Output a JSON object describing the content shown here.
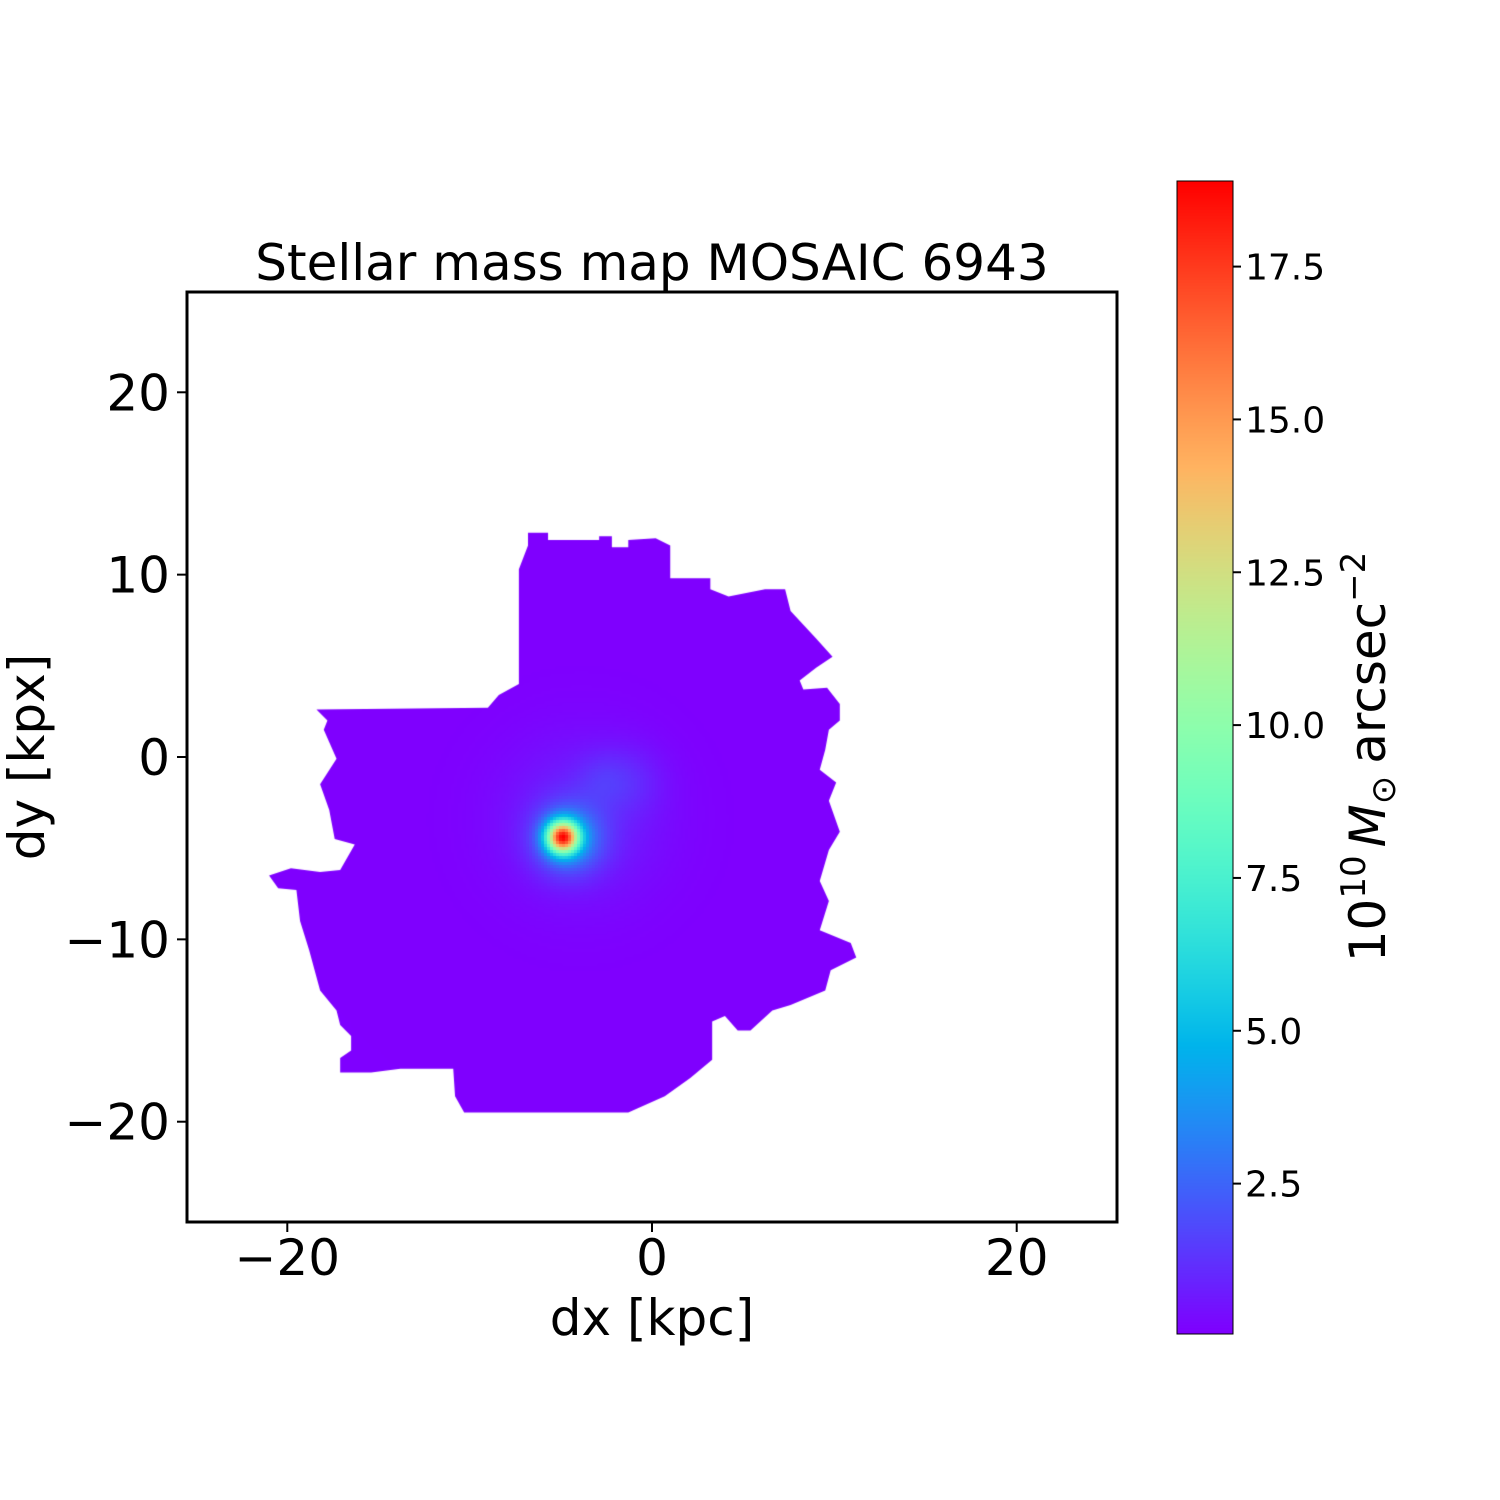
{
  "chart_data": {
    "type": "heatmap",
    "title": "Stellar mass map MOSAIC 6943",
    "xlabel": "dx [kpc]",
    "ylabel": "dy [kpx]",
    "xlim": [
      -25.5,
      25.5
    ],
    "ylim": [
      -25.5,
      25.5
    ],
    "xticks": [
      {
        "value": -20,
        "label": "−20"
      },
      {
        "value": 0,
        "label": "0"
      },
      {
        "value": 20,
        "label": "20"
      }
    ],
    "yticks": [
      {
        "value": 20,
        "label": "20"
      },
      {
        "value": 10,
        "label": "10"
      },
      {
        "value": 0,
        "label": "0"
      },
      {
        "value": -10,
        "label": "−10"
      },
      {
        "value": -20,
        "label": "−20"
      }
    ],
    "colormap": "rainbow",
    "grid": false,
    "peak": {
      "x": -4.9,
      "y": -4.4,
      "value": 18.9
    },
    "background_value": 0.04,
    "galaxy_outline": [
      [
        -6.8,
        12.3
      ],
      [
        -5.7,
        12.3
      ],
      [
        -5.7,
        11.9
      ],
      [
        -2.9,
        11.9
      ],
      [
        -2.9,
        12.1
      ],
      [
        -2.2,
        12.1
      ],
      [
        -2.2,
        11.5
      ],
      [
        -1.3,
        11.5
      ],
      [
        -1.3,
        11.9
      ],
      [
        0.2,
        12.0
      ],
      [
        1.0,
        11.6
      ],
      [
        1.0,
        9.8
      ],
      [
        3.2,
        9.8
      ],
      [
        3.2,
        9.2
      ],
      [
        4.2,
        8.8
      ],
      [
        6.2,
        9.2
      ],
      [
        7.3,
        9.2
      ],
      [
        7.6,
        8.0
      ],
      [
        9.0,
        6.5
      ],
      [
        9.9,
        5.5
      ],
      [
        9.0,
        4.9
      ],
      [
        8.1,
        4.2
      ],
      [
        8.3,
        3.7
      ],
      [
        9.6,
        3.8
      ],
      [
        10.3,
        2.9
      ],
      [
        10.3,
        2.0
      ],
      [
        9.7,
        1.5
      ],
      [
        9.5,
        0.4
      ],
      [
        9.2,
        -0.7
      ],
      [
        10.1,
        -1.4
      ],
      [
        9.7,
        -2.4
      ],
      [
        10.3,
        -4.1
      ],
      [
        9.7,
        -5.1
      ],
      [
        9.2,
        -6.8
      ],
      [
        9.7,
        -7.9
      ],
      [
        9.2,
        -9.5
      ],
      [
        10.9,
        -10.2
      ],
      [
        11.2,
        -11.0
      ],
      [
        9.8,
        -11.7
      ],
      [
        9.5,
        -12.8
      ],
      [
        7.6,
        -13.6
      ],
      [
        6.6,
        -13.9
      ],
      [
        5.4,
        -15.0
      ],
      [
        4.7,
        -15.0
      ],
      [
        4.0,
        -14.2
      ],
      [
        3.3,
        -14.5
      ],
      [
        3.3,
        -16.6
      ],
      [
        2.1,
        -17.6
      ],
      [
        0.7,
        -18.6
      ],
      [
        -1.3,
        -19.5
      ],
      [
        -10.3,
        -19.5
      ],
      [
        -10.8,
        -18.6
      ],
      [
        -10.9,
        -17.1
      ],
      [
        -13.8,
        -17.1
      ],
      [
        -15.4,
        -17.3
      ],
      [
        -17.1,
        -17.3
      ],
      [
        -17.1,
        -16.5
      ],
      [
        -16.5,
        -16.1
      ],
      [
        -16.5,
        -15.3
      ],
      [
        -17.1,
        -14.7
      ],
      [
        -17.3,
        -13.9
      ],
      [
        -18.2,
        -12.8
      ],
      [
        -18.8,
        -10.6
      ],
      [
        -19.3,
        -9.0
      ],
      [
        -19.5,
        -7.3
      ],
      [
        -20.5,
        -7.2
      ],
      [
        -21.0,
        -6.5
      ],
      [
        -19.8,
        -6.1
      ],
      [
        -18.2,
        -6.3
      ],
      [
        -17.1,
        -6.2
      ],
      [
        -16.3,
        -4.8
      ],
      [
        -17.4,
        -4.5
      ],
      [
        -17.7,
        -2.9
      ],
      [
        -18.2,
        -1.5
      ],
      [
        -17.3,
        -0.1
      ],
      [
        -18.0,
        1.5
      ],
      [
        -17.8,
        2.0
      ],
      [
        -18.4,
        2.6
      ],
      [
        -9.0,
        2.7
      ],
      [
        -8.4,
        3.4
      ],
      [
        -7.3,
        4.0
      ],
      [
        -7.3,
        10.3
      ],
      [
        -6.8,
        11.6
      ]
    ],
    "colorbar": {
      "range": [
        0.04,
        18.9
      ],
      "ticks": [
        {
          "value": 2.5,
          "label": "2.5"
        },
        {
          "value": 5.0,
          "label": "5.0"
        },
        {
          "value": 7.5,
          "label": "7.5"
        },
        {
          "value": 10.0,
          "label": "10.0"
        },
        {
          "value": 12.5,
          "label": "12.5"
        },
        {
          "value": 15.0,
          "label": "15.0"
        },
        {
          "value": 17.5,
          "label": "17.5"
        }
      ],
      "label": {
        "base": "10",
        "exponent": "10",
        "symbol": "M",
        "subscript": "⊙",
        "unit": "arcsec",
        "unit_exponent": "−2"
      }
    }
  }
}
